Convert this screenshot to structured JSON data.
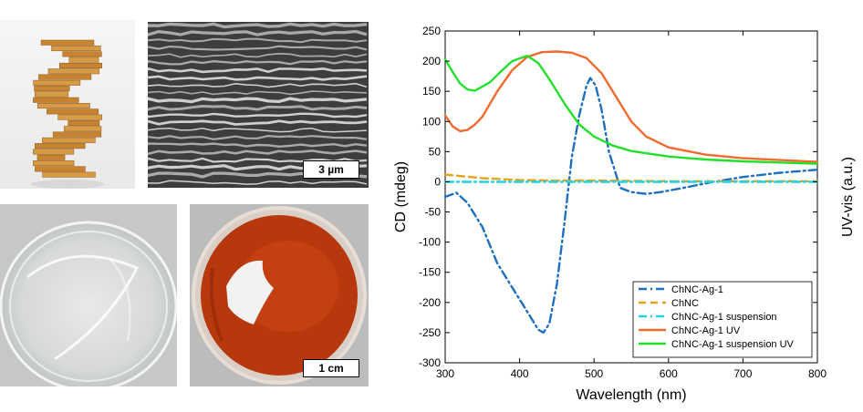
{
  "images": {
    "helix_model": "twisted plywood helicoid model",
    "sem_scale_label": "3 µm",
    "dish_scale_label": "1 cm"
  },
  "chart_data": {
    "type": "line",
    "xlabel": "Wavelength (nm)",
    "ylabel": "CD (mdeg)",
    "ylabel_right": "UV-vis (a.u.)",
    "xlim": [
      300,
      800
    ],
    "ylim": [
      -300,
      250
    ],
    "xticks": [
      300,
      400,
      500,
      600,
      700,
      800
    ],
    "yticks": [
      -300,
      -250,
      -200,
      -150,
      -100,
      -50,
      0,
      50,
      100,
      150,
      200,
      250
    ],
    "legend_position": "bottom-right",
    "series": [
      {
        "name": "ChNC-Ag-1",
        "color": "#1f6fc0",
        "dash": "dashdot",
        "x": [
          300,
          315,
          330,
          350,
          370,
          390,
          410,
          425,
          432,
          440,
          450,
          460,
          470,
          480,
          490,
          495,
          502,
          510,
          520,
          535,
          550,
          570,
          590,
          620,
          660,
          700,
          750,
          800
        ],
        "y": [
          -25,
          -18,
          -35,
          -75,
          -135,
          -175,
          -215,
          -245,
          -250,
          -235,
          -170,
          -70,
          40,
          110,
          160,
          172,
          160,
          120,
          50,
          -10,
          -17,
          -20,
          -17,
          -10,
          0,
          8,
          15,
          20
        ]
      },
      {
        "name": "ChNC",
        "color": "#e6a21e",
        "dash": "dashed",
        "x": [
          300,
          350,
          400,
          450,
          500,
          600,
          700,
          800
        ],
        "y": [
          12,
          6,
          3,
          2,
          2,
          1,
          1,
          1
        ]
      },
      {
        "name": "ChNC-Ag-1 suspension",
        "color": "#22d3e6",
        "dash": "dashdot",
        "x": [
          300,
          400,
          500,
          600,
          700,
          800
        ],
        "y": [
          0,
          0,
          0,
          0,
          0,
          0
        ]
      },
      {
        "name": "ChNC-Ag-1 UV",
        "color": "#f26a2e",
        "dash": "solid",
        "x": [
          300,
          310,
          320,
          330,
          340,
          350,
          370,
          390,
          410,
          430,
          450,
          470,
          490,
          510,
          530,
          550,
          570,
          600,
          650,
          700,
          750,
          800
        ],
        "y": [
          110,
          92,
          84,
          86,
          95,
          108,
          150,
          185,
          207,
          215,
          216,
          214,
          205,
          180,
          140,
          100,
          75,
          57,
          45,
          39,
          36,
          33
        ]
      },
      {
        "name": "ChNC-Ag-1 suspension UV",
        "color": "#22e02a",
        "dash": "solid",
        "x": [
          300,
          310,
          320,
          330,
          340,
          350,
          360,
          375,
          390,
          410,
          425,
          440,
          460,
          480,
          500,
          525,
          550,
          600,
          650,
          700,
          750,
          800
        ],
        "y": [
          203,
          182,
          163,
          153,
          151,
          158,
          165,
          183,
          200,
          209,
          197,
          170,
          130,
          95,
          75,
          60,
          51,
          42,
          37,
          34,
          32,
          30
        ]
      }
    ]
  }
}
